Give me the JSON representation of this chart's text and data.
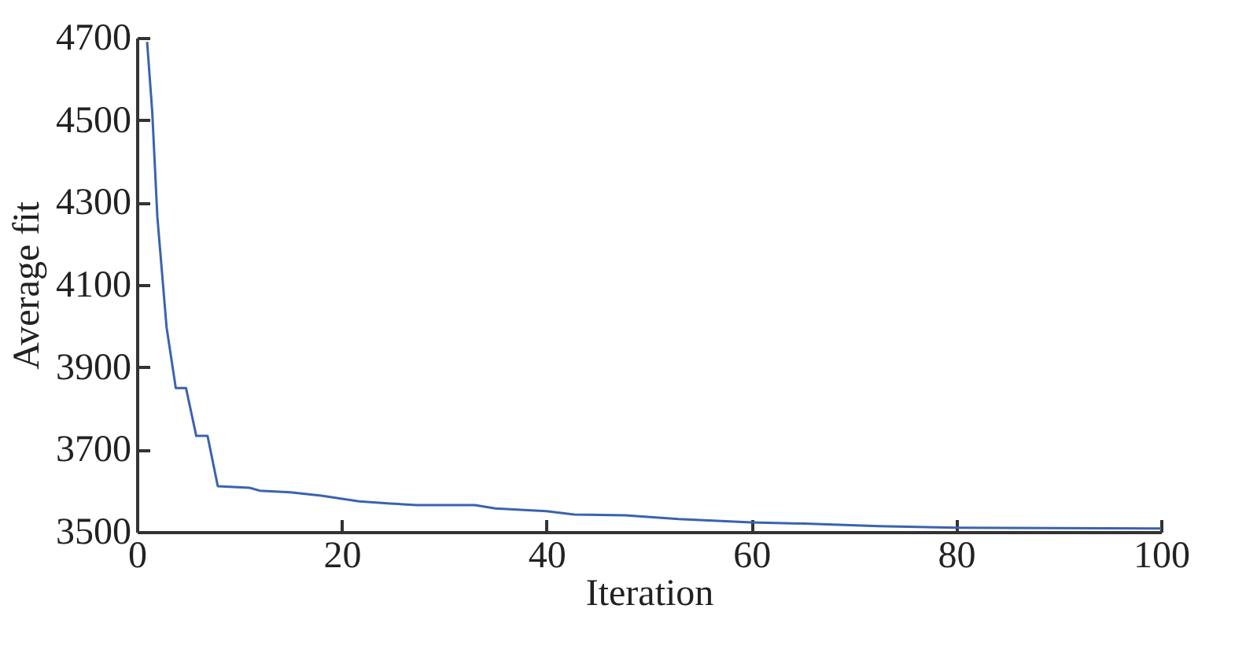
{
  "chart_data": {
    "type": "line",
    "xlabel": "Iteration",
    "ylabel": "Average fit",
    "x": [
      1,
      1.5,
      2,
      2.9,
      3.8,
      4.8,
      5.8,
      6.9,
      7.9,
      11,
      12,
      15,
      18,
      21.7,
      24.7,
      27.3,
      33,
      35,
      40,
      42.7,
      47.7,
      52.9,
      60,
      65.2,
      72.4,
      80,
      100
    ],
    "series": [
      {
        "color": "#3a63ad",
        "values": [
          4690,
          4520,
          4265,
          3997,
          3849,
          3849,
          3733,
          3733,
          3611,
          3607,
          3600,
          3596,
          3588,
          3574,
          3569,
          3565,
          3565,
          3557,
          3550,
          3542,
          3540,
          3531,
          3523,
          3520,
          3514,
          3510,
          3508
        ]
      }
    ],
    "xlim": [
      0,
      100
    ],
    "xticks": [
      0,
      20,
      40,
      60,
      80,
      100
    ],
    "ylim": [
      3500,
      4700
    ],
    "yticks": [
      3500,
      3700,
      3900,
      4100,
      4300,
      4500,
      4700
    ],
    "grid": false,
    "legend": false,
    "marker": "none",
    "line_style": "solid"
  }
}
